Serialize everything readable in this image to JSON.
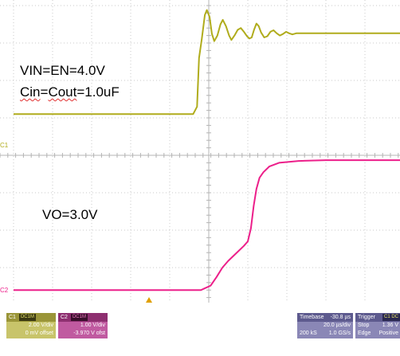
{
  "chart_data": {
    "type": "line",
    "grid": true,
    "x_divisions": 10,
    "y_divisions": 8,
    "series": [
      {
        "color": "#b0ac1c",
        "points": [
          [
            0,
            1.1
          ],
          [
            4.6,
            1.1
          ],
          [
            4.7,
            1.3
          ],
          [
            4.75,
            2.6
          ],
          [
            4.82,
            3.1
          ],
          [
            4.9,
            3.75
          ],
          [
            4.95,
            3.88
          ],
          [
            5.02,
            3.7
          ],
          [
            5.08,
            3.25
          ],
          [
            5.14,
            3.05
          ],
          [
            5.22,
            3.2
          ],
          [
            5.3,
            3.5
          ],
          [
            5.36,
            3.62
          ],
          [
            5.44,
            3.45
          ],
          [
            5.52,
            3.2
          ],
          [
            5.58,
            3.08
          ],
          [
            5.66,
            3.2
          ],
          [
            5.74,
            3.35
          ],
          [
            5.82,
            3.4
          ],
          [
            5.9,
            3.3
          ],
          [
            5.98,
            3.18
          ],
          [
            6.04,
            3.12
          ],
          [
            6.1,
            3.15
          ],
          [
            6.16,
            3.35
          ],
          [
            6.22,
            3.52
          ],
          [
            6.28,
            3.45
          ],
          [
            6.34,
            3.28
          ],
          [
            6.42,
            3.15
          ],
          [
            6.5,
            3.18
          ],
          [
            6.58,
            3.3
          ],
          [
            6.66,
            3.34
          ],
          [
            6.74,
            3.26
          ],
          [
            6.82,
            3.2
          ],
          [
            6.9,
            3.24
          ],
          [
            6.98,
            3.3
          ],
          [
            7.06,
            3.26
          ],
          [
            7.14,
            3.23
          ],
          [
            7.24,
            3.26
          ],
          [
            7.4,
            3.26
          ],
          [
            8.2,
            3.26
          ],
          [
            10,
            3.26
          ]
        ]
      },
      {
        "color": "#ec1f8a",
        "points": [
          [
            0,
            -3.6
          ],
          [
            4.8,
            -3.6
          ],
          [
            5.05,
            -3.48
          ],
          [
            5.2,
            -3.25
          ],
          [
            5.35,
            -3.0
          ],
          [
            5.5,
            -2.82
          ],
          [
            5.7,
            -2.62
          ],
          [
            5.9,
            -2.42
          ],
          [
            6.0,
            -2.3
          ],
          [
            6.08,
            -1.95
          ],
          [
            6.15,
            -1.35
          ],
          [
            6.22,
            -0.9
          ],
          [
            6.3,
            -0.6
          ],
          [
            6.4,
            -0.45
          ],
          [
            6.55,
            -0.3
          ],
          [
            6.8,
            -0.2
          ],
          [
            7.3,
            -0.15
          ],
          [
            8.0,
            -0.13
          ],
          [
            10,
            -0.13
          ]
        ]
      }
    ],
    "annotations": [
      "VIN=EN=4.0V",
      "Cin=Cout=1.0uF",
      "VO=3.0V"
    ],
    "channel_markers": [
      "C1",
      "C2"
    ]
  },
  "annotations": {
    "vin": "VIN=EN=4.0V",
    "cin_prefix": "Cin",
    "cin_mid": "=",
    "cout": "Cout",
    "cin_suffix": "=1.0uF",
    "vo": "VO=3.0V"
  },
  "markers": {
    "c1": "C1",
    "c2": "C2"
  },
  "info": {
    "ch1": {
      "label": "C1",
      "tag": "DC1M",
      "scale": "2.00 V/div",
      "offset": "0 mV offset",
      "color": "#e6e36a"
    },
    "ch2": {
      "label": "C2",
      "tag": "DC1M",
      "scale": "1.00 V/div",
      "offset": "-3.970 V ofst",
      "color": "#f07ac2"
    },
    "timebase": {
      "label": "Timebase",
      "delay": "-30.8 µs",
      "tdiv": "20.0 µs/div",
      "samples": "200 kS",
      "rate": "1.0 GS/s"
    },
    "trigger": {
      "label": "Trigger",
      "tag": "C1 DC",
      "mode": "Stop",
      "level": "1.36 V",
      "type": "Edge",
      "slope": "Positive"
    }
  }
}
